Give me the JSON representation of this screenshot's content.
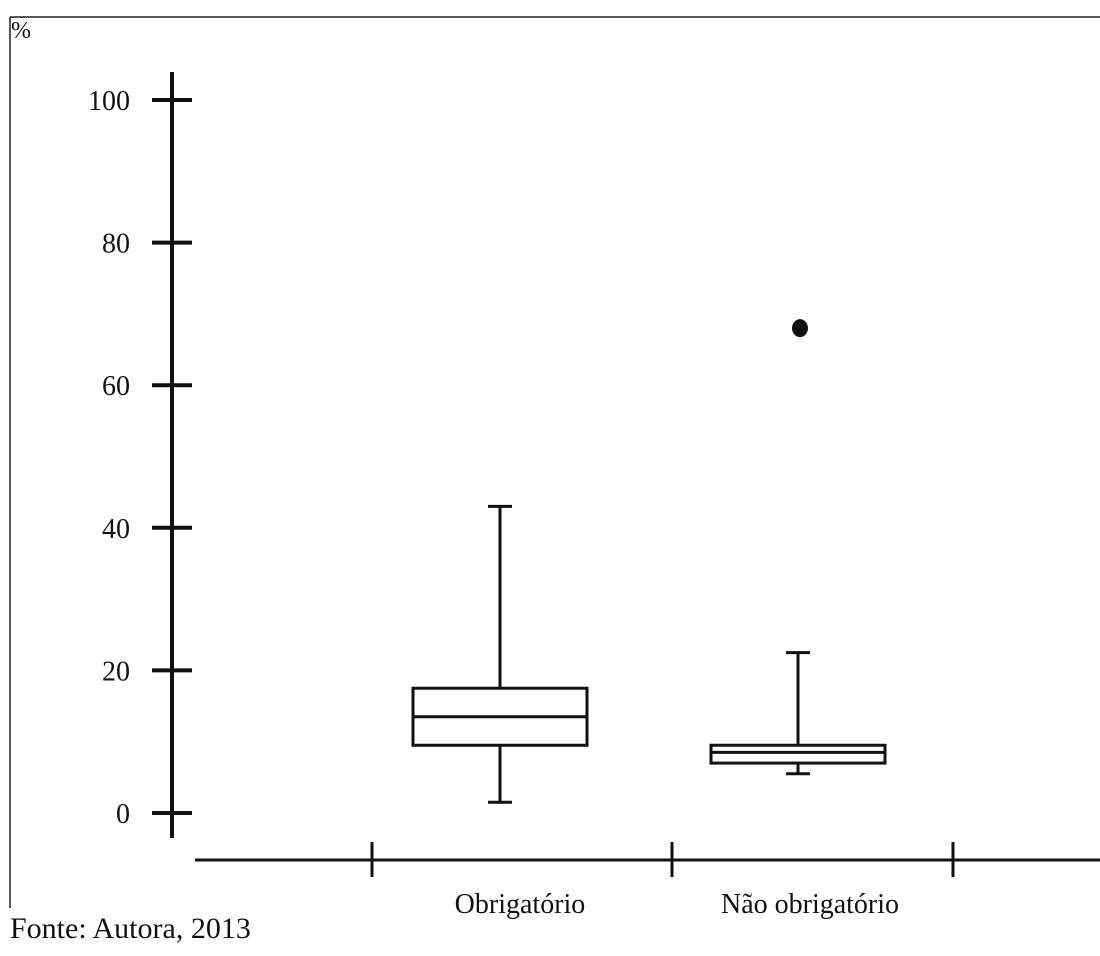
{
  "caption": "Fonte: Autora, 2013",
  "chart_data": {
    "type": "boxplot",
    "title": "",
    "ylabel": "%",
    "xlabel": "",
    "ylim": [
      0,
      100
    ],
    "yticks": [
      0,
      20,
      40,
      60,
      80,
      100
    ],
    "grid": false,
    "categories": [
      "Obrigatório",
      "Não obrigatório"
    ],
    "boxes": [
      {
        "category": "Obrigatório",
        "whisker_low": 1.5,
        "q1": 9.5,
        "median": 13.5,
        "q3": 17.5,
        "whisker_high": 43,
        "outliers": []
      },
      {
        "category": "Não obrigatório",
        "whisker_low": 5.5,
        "q1": 7,
        "median": 8.5,
        "q3": 9.5,
        "whisker_high": 22.5,
        "outliers": [
          68
        ]
      }
    ],
    "colors": {
      "stroke": "#111111",
      "fill": "#ffffff"
    }
  }
}
